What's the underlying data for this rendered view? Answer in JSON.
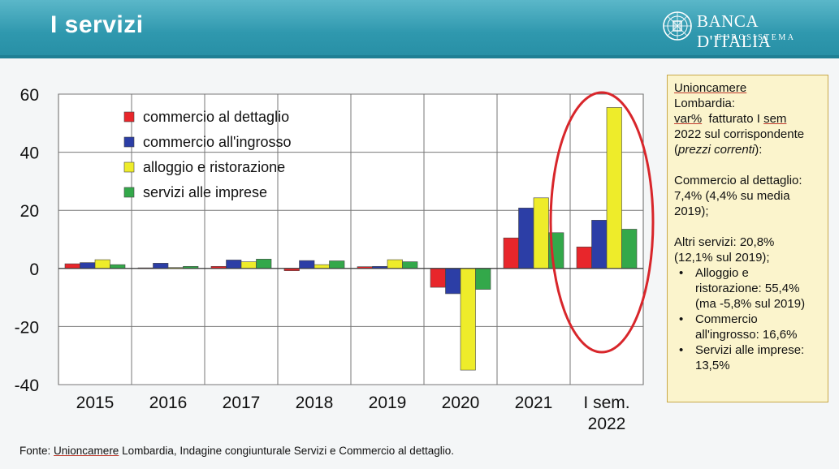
{
  "slide": {
    "title": "I servizi"
  },
  "logo": {
    "name": "BANCA D'ITALIA",
    "subtitle": "EUROSISTEMA",
    "icon": "bank-emblem-icon"
  },
  "colors": {
    "header": "#2f98ae",
    "red": "#e8262b",
    "blue": "#2c3ea6",
    "yellow": "#eeec2a",
    "green": "#33a84a",
    "highlight": "#d8262b",
    "info_bg": "#fbf4cc"
  },
  "chart_data": {
    "type": "bar",
    "categories": [
      "2015",
      "2016",
      "2017",
      "2018",
      "2019",
      "2020",
      "2021",
      "I sem.\n2022"
    ],
    "series": [
      {
        "name": "commercio al dettaglio",
        "color": "#e8262b",
        "values": [
          1.6,
          0.2,
          0.7,
          -0.8,
          0.6,
          -6.5,
          10.5,
          7.4
        ]
      },
      {
        "name": "commercio all'ingrosso",
        "color": "#2c3ea6",
        "values": [
          2.0,
          1.8,
          2.9,
          2.7,
          0.7,
          -8.7,
          20.8,
          16.6
        ]
      },
      {
        "name": "alloggio e ristorazione",
        "color": "#eeec2a",
        "values": [
          3.0,
          0.3,
          2.3,
          1.3,
          3.0,
          -35.0,
          24.3,
          55.4
        ]
      },
      {
        "name": "servizi alle imprese",
        "color": "#33a84a",
        "values": [
          1.3,
          0.7,
          3.2,
          2.6,
          2.3,
          -7.2,
          12.3,
          13.5
        ]
      }
    ],
    "ylim": [
      -40,
      60
    ],
    "yticks": [
      -40,
      -20,
      0,
      20,
      40,
      60
    ],
    "grid": true,
    "legend": "top-left",
    "annotation": "highlighted I sem. 2022"
  },
  "info": {
    "l1": "Unioncamere",
    "l2": "Lombardia:",
    "l3a": "var%",
    "l3b": "  fatturato I ",
    "l3c": "sem",
    "l4": "2022 sul corrispondente",
    "l5a": "(",
    "l5b": "prezzi correnti",
    "l5c": "):",
    "c1": "Commercio al dettaglio:",
    "c2": "7,4% (4,4% su media",
    "c3": "2019);",
    "a1": "Altri servizi: 20,8%",
    "a2": "(12,1% sul 2019);",
    "bullets": [
      {
        "l1": "Alloggio e",
        "l2": "ristorazione: 55,4%",
        "l3": "(ma -5,8% sul 2019)"
      },
      {
        "l1": "Commercio",
        "l2": "all'ingrosso: 16,6%"
      },
      {
        "l1": "Servizi alle imprese:",
        "l2": "13,5%"
      }
    ]
  },
  "footer": {
    "src_label": "Fonte: ",
    "src_name": "Unioncamere",
    "src_rest": " Lombardia, Indagine congiunturale Servizi e Commercio al dettaglio."
  }
}
